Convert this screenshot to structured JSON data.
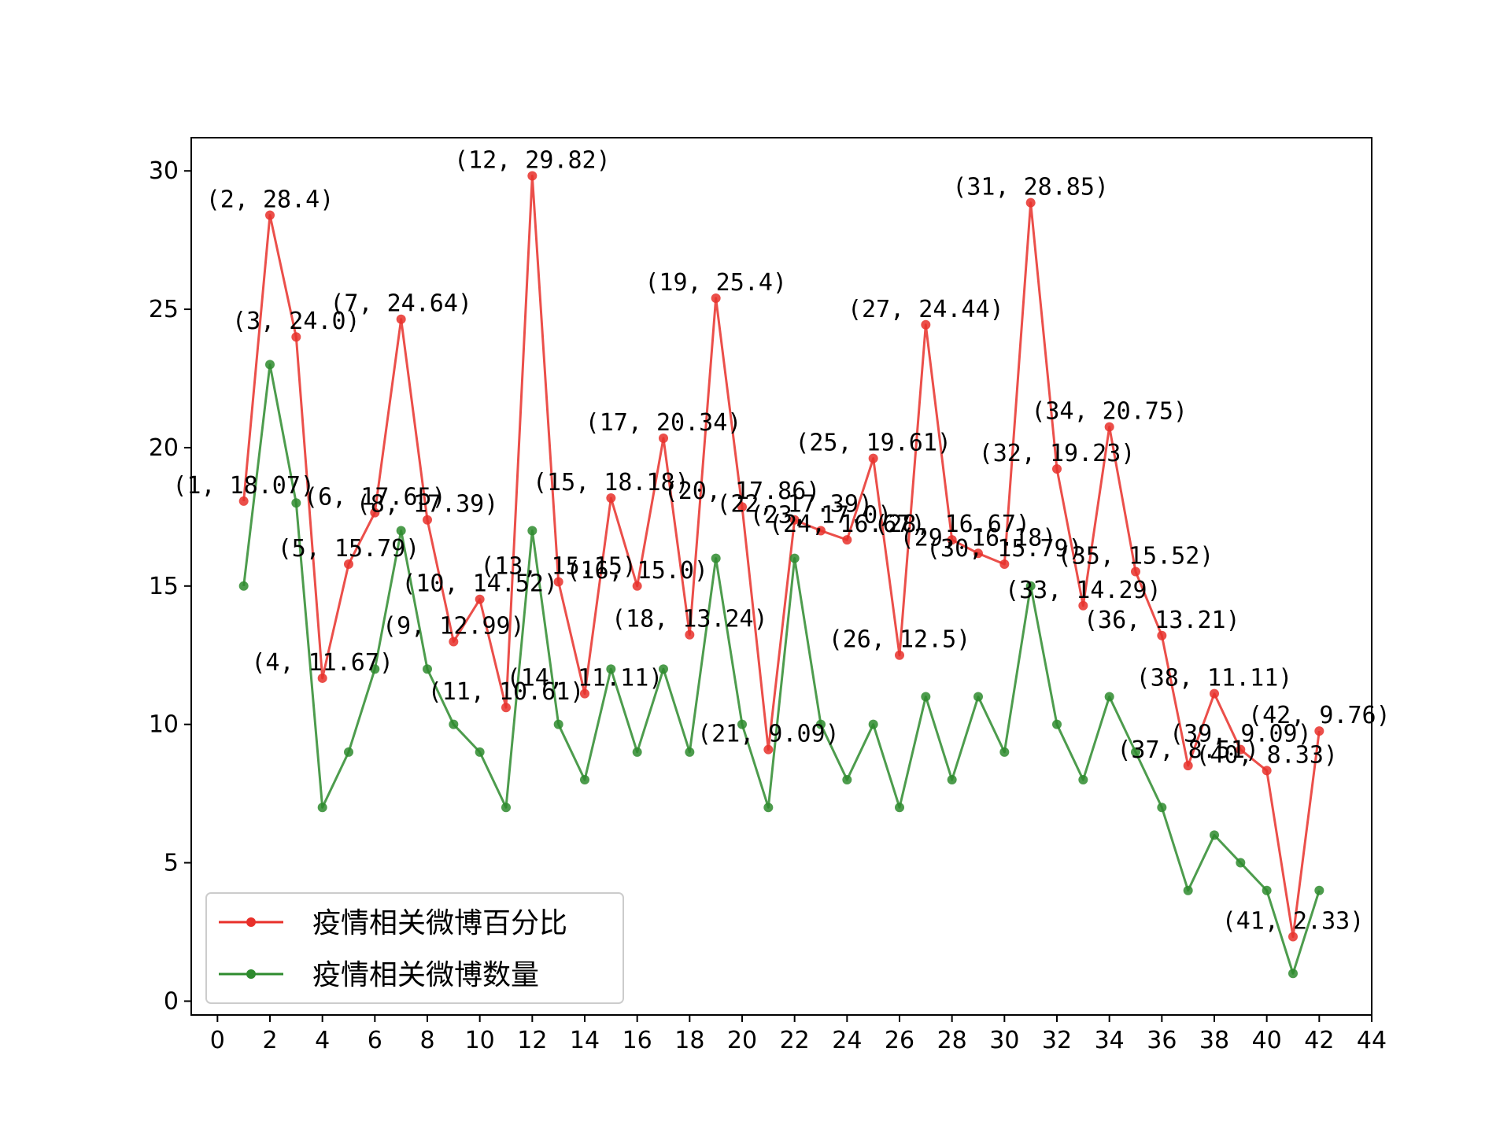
{
  "chart_data": {
    "type": "line",
    "title": "",
    "xlabel": "",
    "ylabel": "",
    "xlim": [
      -1,
      44
    ],
    "ylim": [
      -0.5,
      31.2
    ],
    "x_ticks": [
      "0",
      "2",
      "4",
      "6",
      "8",
      "10",
      "12",
      "14",
      "16",
      "18",
      "20",
      "22",
      "24",
      "26",
      "28",
      "30",
      "32",
      "34",
      "36",
      "38",
      "40",
      "42",
      "44"
    ],
    "y_ticks": [
      "0",
      "5",
      "10",
      "15",
      "20",
      "25",
      "30"
    ],
    "x": [
      1,
      2,
      3,
      4,
      5,
      6,
      7,
      8,
      9,
      10,
      11,
      12,
      13,
      14,
      15,
      16,
      17,
      18,
      19,
      20,
      21,
      22,
      23,
      24,
      25,
      26,
      27,
      28,
      29,
      30,
      31,
      32,
      33,
      34,
      35,
      36,
      37,
      38,
      39,
      40,
      41,
      42
    ],
    "series": [
      {
        "name": "疫情相关微博百分比",
        "color": "#e8302a",
        "labeled": true,
        "values": [
          18.07,
          28.4,
          24.0,
          11.67,
          15.79,
          17.65,
          24.64,
          17.39,
          12.99,
          14.52,
          10.61,
          29.82,
          15.15,
          11.11,
          18.18,
          15.0,
          20.34,
          13.24,
          25.4,
          17.86,
          9.09,
          17.39,
          17.0,
          16.67,
          19.61,
          12.5,
          24.44,
          16.67,
          16.18,
          15.79,
          28.85,
          19.23,
          14.29,
          20.75,
          15.52,
          13.21,
          8.51,
          11.11,
          9.09,
          8.33,
          2.33,
          9.76
        ],
        "point_labels": [
          "(1, 18.07)",
          "(2, 28.4)",
          "(3, 24.0)",
          "(4, 11.67)",
          "(5, 15.79)",
          "(6, 17.65)",
          "(7, 24.64)",
          "(8, 17.39)",
          "(9, 12.99)",
          "(10, 14.52)",
          "(11, 10.61)",
          "(12, 29.82)",
          "(13, 15.15)",
          "(14, 11.11)",
          "(15, 18.18)",
          "(16, 15.0)",
          "(17, 20.34)",
          "(18, 13.24)",
          "(19, 25.4)",
          "(20, 17.86)",
          "(21, 9.09)",
          "(22, 17.39)",
          "(23, 17.0)",
          "(24, 16.67)",
          "(25, 19.61)",
          "(26, 12.5)",
          "(27, 24.44)",
          "(28, 16.67)",
          "(29, 16.18)",
          "(30, 15.79)",
          "(31, 28.85)",
          "(32, 19.23)",
          "(33, 14.29)",
          "(34, 20.75)",
          "(35, 15.52)",
          "(36, 13.21)",
          "(37, 8.51)",
          "(38, 11.11)",
          "(39, 9.09)",
          "(40, 8.33)",
          "(41, 2.33)",
          "(42, 9.76)"
        ]
      },
      {
        "name": "疫情相关微博数量",
        "color": "#2e8b2e",
        "labeled": false,
        "values": [
          15,
          23,
          18,
          7,
          9,
          12,
          17,
          12,
          10,
          9,
          7,
          17,
          10,
          8,
          12,
          9,
          12,
          9,
          16,
          10,
          7,
          16,
          10,
          8,
          10,
          7,
          11,
          8,
          11,
          9,
          15,
          10,
          8,
          11,
          9,
          7,
          4,
          6,
          5,
          4,
          1,
          4
        ]
      }
    ],
    "grid": false,
    "legend": "lower-left"
  }
}
